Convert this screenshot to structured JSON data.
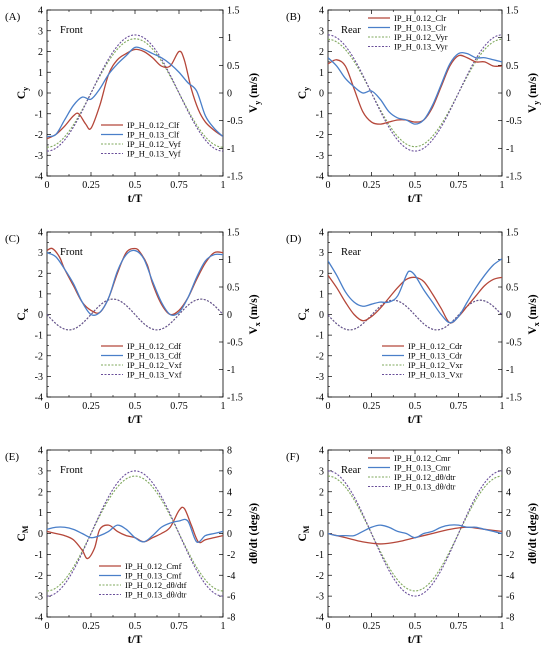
{
  "chart_data": [
    {
      "panel": "(A)",
      "label": "Front",
      "type": "line",
      "xlabel": "t/T",
      "ylabel_left": "C",
      "ylabel_left_sub": "y",
      "ylabel_right": "V",
      "ylabel_right_sub": "y",
      "ylabel_right_unit": " (m/s)",
      "xlim": [
        0,
        1
      ],
      "ylim_left": [
        -4,
        4
      ],
      "ylim_right": [
        -1.5,
        1.5
      ],
      "xticks": [
        "0",
        "0.25",
        "0.5",
        "0.75",
        "1"
      ],
      "yticks_left": [
        "-4",
        "-3",
        "-2",
        "-1",
        "0",
        "1",
        "2",
        "3",
        "4"
      ],
      "yticks_right": [
        "-1.5",
        "-1",
        "-0.5",
        "0",
        "0.5",
        "1",
        "1.5"
      ],
      "legend": "bottom-right",
      "series": [
        {
          "name": "IP_H_0.12_Clf",
          "axis": "left",
          "color": "#b5473a",
          "dash": "",
          "x": [
            0,
            0.05,
            0.1,
            0.15,
            0.18,
            0.22,
            0.25,
            0.3,
            0.35,
            0.4,
            0.45,
            0.5,
            0.55,
            0.6,
            0.65,
            0.7,
            0.75,
            0.78,
            0.82,
            0.86,
            0.9,
            0.95,
            1
          ],
          "y": [
            -2.2,
            -2.0,
            -1.6,
            -1.1,
            -1.0,
            -1.5,
            -1.7,
            -0.6,
            0.9,
            1.6,
            1.9,
            2.1,
            2.0,
            1.7,
            1.3,
            1.3,
            2.0,
            1.6,
            0.2,
            -0.8,
            -1.4,
            -1.8,
            -2.1
          ]
        },
        {
          "name": "IP_H_0.13_Clf",
          "axis": "left",
          "color": "#4a7fc9",
          "dash": "",
          "x": [
            0,
            0.05,
            0.1,
            0.15,
            0.2,
            0.25,
            0.3,
            0.35,
            0.4,
            0.45,
            0.5,
            0.55,
            0.6,
            0.65,
            0.7,
            0.75,
            0.8,
            0.85,
            0.9,
            0.95,
            1
          ],
          "y": [
            -2.1,
            -2.0,
            -1.3,
            -0.6,
            -0.2,
            -0.3,
            0.2,
            0.9,
            1.4,
            1.8,
            2.2,
            2.1,
            1.9,
            1.7,
            1.4,
            1.0,
            0.5,
            0.1,
            -1.1,
            -1.7,
            -2.1
          ]
        },
        {
          "name": "IP_H_0.12_Vyf",
          "axis": "right",
          "color": "#7fa85c",
          "dash": "2,1.5",
          "func": "cos",
          "amp": 0.98,
          "phase": 0.5,
          "offset": 0
        },
        {
          "name": "IP_H_0.13_Vyf",
          "axis": "right",
          "color": "#6a4f9a",
          "dash": "2,1.5",
          "func": "cos",
          "amp": 1.05,
          "phase": 0.5,
          "offset": 0
        }
      ]
    },
    {
      "panel": "(B)",
      "label": "Rear",
      "type": "line",
      "xlabel": "t/T",
      "ylabel_left": "C",
      "ylabel_left_sub": "y",
      "ylabel_right": "V",
      "ylabel_right_sub": "y",
      "ylabel_right_unit": " (m/s)",
      "xlim": [
        0,
        1
      ],
      "ylim_left": [
        -4,
        4
      ],
      "ylim_right": [
        -1.5,
        1.5
      ],
      "xticks": [
        "0",
        "0.25",
        "0.5",
        "0.75",
        "1"
      ],
      "yticks_left": [
        "-4",
        "-3",
        "-2",
        "-1",
        "0",
        "1",
        "2",
        "3",
        "4"
      ],
      "yticks_right": [
        "-1.5",
        "-1",
        "-0.5",
        "0",
        "0.5",
        "1",
        "1.5"
      ],
      "legend": "top-center",
      "series": [
        {
          "name": "IP_H_0.12_Clr",
          "axis": "left",
          "color": "#b5473a",
          "dash": "",
          "x": [
            0,
            0.05,
            0.1,
            0.15,
            0.2,
            0.25,
            0.3,
            0.35,
            0.4,
            0.45,
            0.5,
            0.55,
            0.6,
            0.65,
            0.7,
            0.75,
            0.8,
            0.85,
            0.9,
            0.95,
            1
          ],
          "y": [
            1.4,
            1.6,
            1.3,
            0.2,
            -0.9,
            -1.4,
            -1.5,
            -1.4,
            -1.3,
            -1.3,
            -1.4,
            -1.3,
            -0.7,
            0.3,
            1.3,
            1.8,
            1.7,
            1.5,
            1.5,
            1.3,
            1.3
          ]
        },
        {
          "name": "IP_H_0.13_Clr",
          "axis": "left",
          "color": "#4a7fc9",
          "dash": "",
          "x": [
            0,
            0.05,
            0.1,
            0.15,
            0.2,
            0.25,
            0.3,
            0.35,
            0.4,
            0.45,
            0.5,
            0.55,
            0.6,
            0.65,
            0.7,
            0.75,
            0.8,
            0.85,
            0.9,
            0.95,
            1
          ],
          "y": [
            1.7,
            1.3,
            0.7,
            0.3,
            0.0,
            0.1,
            -0.3,
            -0.9,
            -1.2,
            -1.3,
            -1.5,
            -1.3,
            -0.6,
            0.4,
            1.4,
            1.9,
            1.9,
            1.7,
            1.7,
            1.6,
            1.5
          ]
        },
        {
          "name": "IP_H_0.12_Vyr",
          "axis": "right",
          "color": "#7fa85c",
          "dash": "2,1.5",
          "func": "cos",
          "amp": 0.97,
          "phase": 0,
          "offset": 0
        },
        {
          "name": "IP_H_0.13_Vyr",
          "axis": "right",
          "color": "#6a4f9a",
          "dash": "2,1.5",
          "func": "cos",
          "amp": 1.05,
          "phase": 0,
          "offset": 0
        }
      ]
    },
    {
      "panel": "(C)",
      "label": "Front",
      "type": "line",
      "xlabel": "t/T",
      "ylabel_left": "C",
      "ylabel_left_sub": "x",
      "ylabel_right": "V",
      "ylabel_right_sub": "x",
      "ylabel_right_unit": " (m/s)",
      "xlim": [
        0,
        1
      ],
      "ylim_left": [
        -4,
        4
      ],
      "ylim_right": [
        -1.5,
        1.5
      ],
      "xticks": [
        "0",
        "0.25",
        "0.5",
        "0.75",
        "1"
      ],
      "yticks_left": [
        "-4",
        "-3",
        "-2",
        "-1",
        "0",
        "1",
        "2",
        "3",
        "4"
      ],
      "yticks_right": [
        "-1.5",
        "-1",
        "-0.5",
        "0",
        "0.5",
        "1",
        "1.5"
      ],
      "legend": "bottom-right",
      "series": [
        {
          "name": "IP_H_0.12_Cdf",
          "axis": "left",
          "color": "#b5473a",
          "dash": "",
          "x": [
            0,
            0.03,
            0.07,
            0.1,
            0.15,
            0.2,
            0.25,
            0.3,
            0.35,
            0.4,
            0.45,
            0.5,
            0.53,
            0.57,
            0.6,
            0.65,
            0.7,
            0.75,
            0.8,
            0.85,
            0.9,
            0.95,
            1
          ],
          "y": [
            3.1,
            3.2,
            2.8,
            2.2,
            1.4,
            0.6,
            0.2,
            0.1,
            0.8,
            2.0,
            3.0,
            3.2,
            3.0,
            2.4,
            1.5,
            0.5,
            0.0,
            0.2,
            0.8,
            1.7,
            2.5,
            3.0,
            3.0
          ]
        },
        {
          "name": "IP_H_0.13_Cdf",
          "axis": "left",
          "color": "#4a7fc9",
          "dash": "",
          "x": [
            0,
            0.05,
            0.1,
            0.15,
            0.2,
            0.25,
            0.3,
            0.35,
            0.4,
            0.45,
            0.5,
            0.55,
            0.6,
            0.65,
            0.7,
            0.75,
            0.8,
            0.85,
            0.9,
            0.95,
            1
          ],
          "y": [
            3.0,
            2.8,
            2.2,
            1.5,
            0.6,
            0.0,
            0.1,
            0.8,
            2.1,
            2.9,
            3.1,
            2.7,
            1.6,
            0.6,
            0.0,
            0.1,
            0.8,
            1.8,
            2.6,
            2.9,
            2.9
          ]
        },
        {
          "name": "IP_H_0.12_Vxf",
          "axis": "right",
          "color": "#7fa85c",
          "dash": "2,1.5",
          "func": "cos2",
          "amp": 0.28,
          "phase": 0.375,
          "offset": 0.0
        },
        {
          "name": "IP_H_0.13_Vxf",
          "axis": "right",
          "color": "#6a4f9a",
          "dash": "2,1.5",
          "func": "cos2",
          "amp": 0.28,
          "phase": 0.375,
          "offset": 0.0
        }
      ]
    },
    {
      "panel": "(D)",
      "label": "Rear",
      "type": "line",
      "xlabel": "t/T",
      "ylabel_left": "C",
      "ylabel_left_sub": "x",
      "ylabel_right": "V",
      "ylabel_right_sub": "x",
      "ylabel_right_unit": " (m/s)",
      "xlim": [
        0,
        1
      ],
      "ylim_left": [
        -4,
        4
      ],
      "ylim_right": [
        -1.5,
        1.5
      ],
      "xticks": [
        "0",
        "0.25",
        "0.5",
        "0.75",
        "1"
      ],
      "yticks_left": [
        "-4",
        "-3",
        "-2",
        "-1",
        "0",
        "1",
        "2",
        "3",
        "4"
      ],
      "yticks_right": [
        "-1.5",
        "-1",
        "-0.5",
        "0",
        "0.5",
        "1",
        "1.5"
      ],
      "legend": "bottom-right",
      "series": [
        {
          "name": "IP_H_0.12_Cdr",
          "axis": "left",
          "color": "#b5473a",
          "dash": "",
          "x": [
            0,
            0.05,
            0.1,
            0.15,
            0.2,
            0.25,
            0.3,
            0.35,
            0.4,
            0.45,
            0.5,
            0.55,
            0.6,
            0.65,
            0.7,
            0.75,
            0.8,
            0.85,
            0.9,
            0.95,
            1
          ],
          "y": [
            1.9,
            1.3,
            0.6,
            0.0,
            -0.3,
            -0.1,
            0.3,
            0.8,
            1.3,
            1.7,
            1.8,
            1.6,
            1.0,
            0.3,
            -0.4,
            -0.1,
            0.4,
            0.9,
            1.4,
            1.7,
            1.8
          ]
        },
        {
          "name": "IP_H_0.13_Cdr",
          "axis": "left",
          "color": "#4a7fc9",
          "dash": "",
          "x": [
            0,
            0.05,
            0.1,
            0.15,
            0.2,
            0.25,
            0.3,
            0.35,
            0.4,
            0.45,
            0.47,
            0.5,
            0.55,
            0.6,
            0.65,
            0.7,
            0.75,
            0.8,
            0.85,
            0.9,
            0.95,
            1
          ],
          "y": [
            2.6,
            1.9,
            1.1,
            0.6,
            0.4,
            0.5,
            0.6,
            0.6,
            0.9,
            1.9,
            2.1,
            1.9,
            1.2,
            0.6,
            0.0,
            -0.4,
            -0.1,
            0.6,
            1.3,
            1.9,
            2.4,
            2.7
          ]
        },
        {
          "name": "IP_H_0.12_Vxr",
          "axis": "right",
          "color": "#7fa85c",
          "dash": "2,1.5",
          "func": "cos2",
          "amp": 0.27,
          "phase": 0.375,
          "offset": -0.01
        },
        {
          "name": "IP_H_0.13_Vxr",
          "axis": "right",
          "color": "#6a4f9a",
          "dash": "2,1.5",
          "func": "cos2",
          "amp": 0.27,
          "phase": 0.375,
          "offset": -0.01
        }
      ]
    },
    {
      "panel": "(E)",
      "label": "Front",
      "type": "line",
      "xlabel": "t/T",
      "ylabel_left": "C",
      "ylabel_left_sub": "M",
      "ylabel_right": "dθ/dt",
      "ylabel_right_sub": "",
      "ylabel_right_unit": " (deg/s)",
      "xlim": [
        0,
        1
      ],
      "ylim_left": [
        -4,
        4
      ],
      "ylim_right": [
        -8,
        8
      ],
      "xticks": [
        "0",
        "0.25",
        "0.5",
        "0.75",
        "1"
      ],
      "yticks_left": [
        "-4",
        "-3",
        "-2",
        "-1",
        "0",
        "1",
        "2",
        "3",
        "4"
      ],
      "yticks_right": [
        "-8",
        "-6",
        "-4",
        "-2",
        "0",
        "2",
        "4",
        "6",
        "8"
      ],
      "legend": "bottom-center",
      "series": [
        {
          "name": "IP_H_0.12_Cmf",
          "axis": "left",
          "color": "#b5473a",
          "dash": "",
          "x": [
            0,
            0.05,
            0.1,
            0.15,
            0.2,
            0.23,
            0.27,
            0.3,
            0.35,
            0.4,
            0.45,
            0.5,
            0.55,
            0.6,
            0.65,
            0.7,
            0.75,
            0.78,
            0.82,
            0.86,
            0.9,
            0.95,
            1
          ],
          "y": [
            0.1,
            0.0,
            -0.1,
            -0.3,
            -0.8,
            -1.2,
            -0.7,
            0.2,
            0.4,
            0.1,
            -0.1,
            -0.2,
            -0.4,
            -0.2,
            0.0,
            0.3,
            1.1,
            1.2,
            0.4,
            -0.4,
            -0.3,
            -0.2,
            -0.1
          ]
        },
        {
          "name": "IP_H_0.13_Cmf",
          "axis": "left",
          "color": "#4a7fc9",
          "dash": "",
          "x": [
            0,
            0.05,
            0.1,
            0.15,
            0.2,
            0.25,
            0.3,
            0.35,
            0.4,
            0.45,
            0.5,
            0.55,
            0.6,
            0.65,
            0.7,
            0.75,
            0.8,
            0.85,
            0.9,
            0.95,
            1
          ],
          "y": [
            0.2,
            0.3,
            0.3,
            0.2,
            0.0,
            -0.2,
            -0.1,
            0.1,
            0.4,
            0.2,
            -0.2,
            -0.4,
            -0.1,
            0.3,
            0.5,
            0.6,
            0.6,
            -0.4,
            -0.1,
            0.0,
            0.1
          ]
        },
        {
          "name": "IP_H_0.12_dθ/dtf",
          "axis": "right",
          "color": "#7fa85c",
          "dash": "2,1.5",
          "func": "cos",
          "amp": 5.5,
          "phase": 0.5,
          "offset": 0
        },
        {
          "name": "IP_H_0.13_dθ/dtr",
          "axis": "right",
          "color": "#6a4f9a",
          "dash": "2,1.5",
          "func": "cos",
          "amp": 6.0,
          "phase": 0.5,
          "offset": 0
        }
      ]
    },
    {
      "panel": "(F)",
      "label": "Rear",
      "type": "line",
      "xlabel": "t/T",
      "ylabel_left": "C",
      "ylabel_left_sub": "M",
      "ylabel_right": "dθ/dt",
      "ylabel_right_sub": "",
      "ylabel_right_unit": " (deg/s)",
      "xlim": [
        0,
        1
      ],
      "ylim_left": [
        -4,
        4
      ],
      "ylim_right": [
        -8,
        8
      ],
      "xticks": [
        "0",
        "0.25",
        "0.5",
        "0.75",
        "1"
      ],
      "yticks_left": [
        "-4",
        "-3",
        "-2",
        "-1",
        "0",
        "1",
        "2",
        "3",
        "4"
      ],
      "yticks_right": [
        "-8",
        "-6",
        "-4",
        "-2",
        "0",
        "2",
        "4",
        "6",
        "8"
      ],
      "legend": "top-center",
      "series": [
        {
          "name": "IP_H_0.12_Cmr",
          "axis": "left",
          "color": "#b5473a",
          "dash": "",
          "x": [
            0,
            0.1,
            0.2,
            0.3,
            0.4,
            0.5,
            0.6,
            0.7,
            0.8,
            0.9,
            1
          ],
          "y": [
            0.0,
            -0.2,
            -0.4,
            -0.5,
            -0.4,
            -0.2,
            0.0,
            0.2,
            0.3,
            0.2,
            0.1
          ]
        },
        {
          "name": "IP_H_0.13_Cmr",
          "axis": "left",
          "color": "#4a7fc9",
          "dash": "",
          "x": [
            0,
            0.05,
            0.1,
            0.15,
            0.2,
            0.25,
            0.3,
            0.35,
            0.4,
            0.45,
            0.5,
            0.55,
            0.6,
            0.65,
            0.7,
            0.75,
            0.8,
            0.85,
            0.9,
            0.95,
            1
          ],
          "y": [
            0.0,
            -0.1,
            -0.1,
            -0.1,
            0.1,
            0.3,
            0.4,
            0.3,
            0.1,
            0.0,
            -0.2,
            0.0,
            0.1,
            0.3,
            0.4,
            0.4,
            0.3,
            0.3,
            0.2,
            0.1,
            0.0
          ]
        },
        {
          "name": "IP_H_0.12_dθ/dtr",
          "axis": "right",
          "color": "#7fa85c",
          "dash": "2,1.5",
          "func": "cos",
          "amp": 5.5,
          "phase": 0,
          "offset": 0
        },
        {
          "name": "IP_H_0.13_dθ/dtr",
          "axis": "right",
          "color": "#6a4f9a",
          "dash": "2,1.5",
          "func": "cos",
          "amp": 6.0,
          "phase": 0,
          "offset": 0
        }
      ]
    }
  ]
}
